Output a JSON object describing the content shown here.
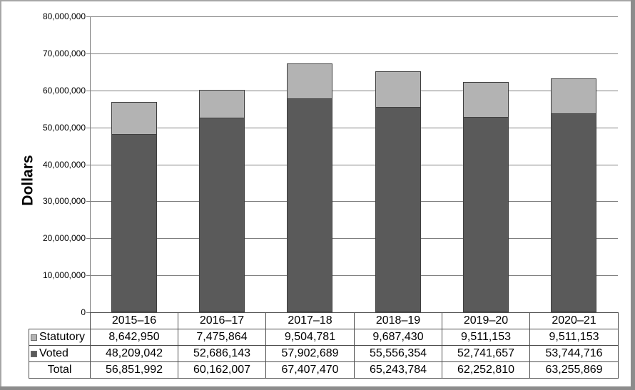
{
  "chart_data": {
    "type": "bar",
    "stacked": true,
    "title": "",
    "ylabel": "Dollars",
    "xlabel": "",
    "categories": [
      "2015–16",
      "2016–17",
      "2017–18",
      "2018–19",
      "2019–20",
      "2020–21"
    ],
    "series": [
      {
        "name": "Statutory",
        "color": "#b3b3b3",
        "border_color": "#3f3f3f",
        "values": [
          8642950,
          7475864,
          9504781,
          9687430,
          9511153,
          9511153
        ]
      },
      {
        "name": "Voted",
        "color": "#5a5a5a",
        "border_color": "#3f3f3f",
        "values": [
          48209042,
          52686143,
          57902689,
          55556354,
          52741657,
          53744716
        ]
      }
    ],
    "stack_order_bottom_to_top": [
      "Voted",
      "Statutory"
    ],
    "totals": {
      "label": "Total",
      "values": [
        56851992,
        60162007,
        67407470,
        65243784,
        62252810,
        63255869
      ]
    },
    "ylim": [
      0,
      80000000
    ],
    "ytick_step": 10000000,
    "ytick_labels": [
      "0",
      "10,000,000",
      "20,000,000",
      "30,000,000",
      "40,000,000",
      "50,000,000",
      "60,000,000",
      "70,000,000",
      "80,000,000"
    ],
    "grid": true,
    "legend_position": "table-row-headers",
    "data_table_shown": true
  },
  "colors": {
    "grid_line": "#7f7f7f",
    "axis_line": "#7f7f7f",
    "table_border": "#4d4d4d",
    "frame_border_light": "#a6a6a6",
    "frame_border_dark": "#8c8c8c",
    "text": "#000000",
    "background": "#ffffff"
  }
}
